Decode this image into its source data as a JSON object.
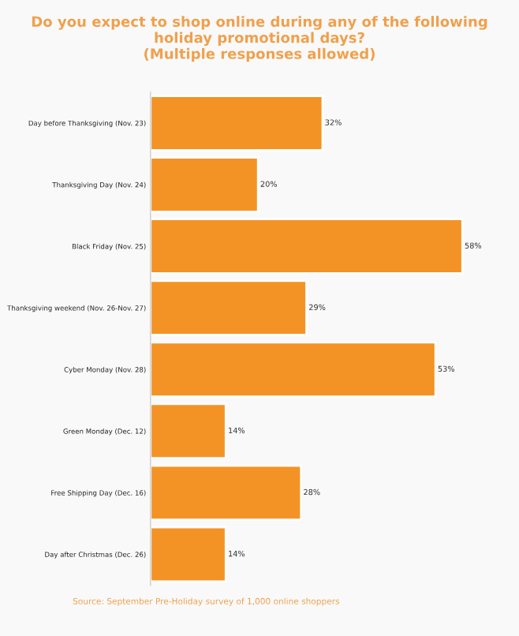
{
  "chart_data": {
    "type": "bar",
    "orientation": "horizontal",
    "title": "Do you expect to shop online during any of the following holiday promotional days?\n(Multiple responses allowed)",
    "categories": [
      "Day before Thanksgiving (Nov. 23)",
      "Thanksgiving Day (Nov. 24)",
      "Black Friday (Nov. 25)",
      "Thanksgiving weekend (Nov. 26-Nov. 27)",
      "Cyber Monday (Nov. 28)",
      "Green Monday (Dec. 12)",
      "Free Shipping Day (Dec. 16)",
      "Day after Christmas (Dec. 26)"
    ],
    "values": [
      32,
      20,
      58,
      29,
      53,
      14,
      28,
      14
    ],
    "value_labels": [
      "32%",
      "20%",
      "58%",
      "29%",
      "53%",
      "14%",
      "28%",
      "14%"
    ],
    "color": "#f39325",
    "annotations": [
      "Source: September Pre-Holiday survey of 1,000 online shoppers"
    ],
    "grid": false,
    "legend": false
  }
}
